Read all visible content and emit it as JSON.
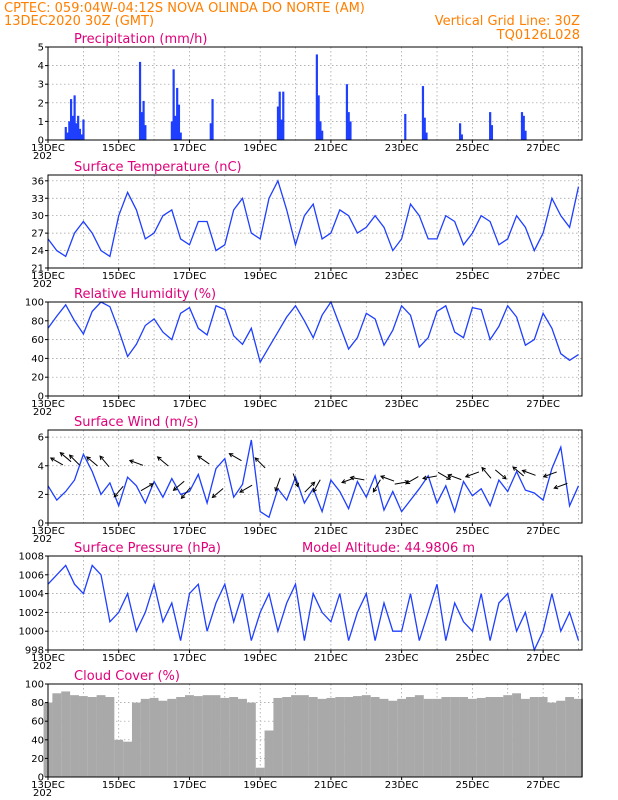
{
  "header": {
    "line1_left": "CPTEC:   059:04W-04:12S   NOVA OLINDA DO NORTE (AM)",
    "line2_left": "13DEC2020 30Z (GMT)",
    "line2_right": "Vertical Grid Line: 30Z",
    "line3_right": "TQ0126L028"
  },
  "colors": {
    "line": "#1f3fff",
    "bars": "#1f3fff",
    "cloud": "#a9a9a9",
    "header": "#ff7f00",
    "title": "#e0007a"
  },
  "x_axis": {
    "labels": [
      "13DEC",
      "15DEC",
      "17DEC",
      "19DEC",
      "21DEC",
      "23DEC",
      "25DEC",
      "27DEC"
    ],
    "label_days": [
      0,
      2,
      4,
      6,
      8,
      10,
      12,
      14
    ],
    "year_fragment": "202",
    "range_days": [
      0,
      15.1
    ]
  },
  "chart_data": [
    {
      "type": "bar",
      "title": "Precipitation (mm/h)",
      "ylim": [
        0,
        5
      ],
      "yticks": [
        0,
        1,
        2,
        3,
        4,
        5
      ],
      "x_days": [
        0.5,
        0.55,
        0.6,
        0.65,
        0.7,
        0.75,
        0.8,
        0.85,
        0.9,
        0.95,
        1.0,
        2.6,
        2.65,
        2.7,
        2.75,
        3.5,
        3.55,
        3.6,
        3.65,
        3.7,
        3.75,
        4.6,
        4.65,
        6.5,
        6.55,
        6.6,
        6.65,
        7.6,
        7.65,
        7.7,
        7.75,
        8.45,
        8.5,
        8.55,
        10.1,
        10.6,
        10.65,
        10.7,
        11.65,
        11.7,
        12.5,
        12.55,
        13.4,
        13.45,
        13.5
      ],
      "values": [
        0.7,
        0.4,
        1.0,
        2.2,
        1.3,
        2.4,
        0.9,
        1.3,
        0.6,
        0.3,
        1.1,
        4.2,
        1.5,
        2.1,
        0.8,
        1.0,
        3.8,
        1.3,
        2.8,
        1.9,
        0.4,
        0.9,
        2.2,
        1.8,
        2.6,
        1.1,
        2.6,
        4.6,
        2.4,
        1.0,
        0.5,
        3.0,
        1.5,
        1.0,
        1.4,
        2.9,
        1.2,
        0.4,
        0.9,
        0.3,
        1.5,
        0.8,
        1.5,
        1.3,
        0.5
      ]
    },
    {
      "type": "line",
      "title": "Surface Temperature (nC)",
      "ylim": [
        21,
        37
      ],
      "yticks": [
        21,
        24,
        27,
        30,
        33,
        36
      ],
      "x_days": [
        0,
        0.25,
        0.5,
        0.75,
        1,
        1.25,
        1.5,
        1.75,
        2,
        2.25,
        2.5,
        2.75,
        3,
        3.25,
        3.5,
        3.75,
        4,
        4.25,
        4.5,
        4.75,
        5,
        5.25,
        5.5,
        5.75,
        6,
        6.25,
        6.5,
        6.75,
        7,
        7.25,
        7.5,
        7.75,
        8,
        8.25,
        8.5,
        8.75,
        9,
        9.25,
        9.5,
        9.75,
        10,
        10.25,
        10.5,
        10.75,
        11,
        11.25,
        11.5,
        11.75,
        12,
        12.25,
        12.5,
        12.75,
        13,
        13.25,
        13.5,
        13.75,
        14,
        14.25,
        14.5,
        14.75,
        15
      ],
      "series": [
        {
          "values": [
            26,
            24,
            23,
            27,
            29,
            27,
            24,
            23,
            30,
            34,
            31,
            26,
            27,
            30,
            31,
            26,
            25,
            29,
            29,
            24,
            25,
            31,
            33,
            27,
            26,
            33,
            36,
            31,
            25,
            30,
            32,
            26,
            27,
            31,
            30,
            27,
            28,
            30,
            28,
            24,
            26,
            32,
            30,
            26,
            26,
            30,
            29,
            25,
            27,
            30,
            29,
            25,
            26,
            30,
            28,
            24,
            27,
            33,
            30,
            28,
            35
          ]
        }
      ]
    },
    {
      "type": "line",
      "title": "Relative Humidity (%)",
      "ylim": [
        0,
        100
      ],
      "yticks": [
        0,
        20,
        40,
        60,
        80,
        100
      ],
      "x_days": [
        0,
        0.25,
        0.5,
        0.75,
        1,
        1.25,
        1.5,
        1.75,
        2,
        2.25,
        2.5,
        2.75,
        3,
        3.25,
        3.5,
        3.75,
        4,
        4.25,
        4.5,
        4.75,
        5,
        5.25,
        5.5,
        5.75,
        6,
        6.25,
        6.5,
        6.75,
        7,
        7.25,
        7.5,
        7.75,
        8,
        8.25,
        8.5,
        8.75,
        9,
        9.25,
        9.5,
        9.75,
        10,
        10.25,
        10.5,
        10.75,
        11,
        11.25,
        11.5,
        11.75,
        12,
        12.25,
        12.5,
        12.75,
        13,
        13.25,
        13.5,
        13.75,
        14,
        14.25,
        14.5,
        14.75,
        15
      ],
      "series": [
        {
          "values": [
            72,
            85,
            97,
            80,
            66,
            90,
            100,
            95,
            70,
            42,
            55,
            75,
            82,
            68,
            60,
            88,
            94,
            72,
            65,
            96,
            92,
            64,
            55,
            72,
            36,
            52,
            68,
            84,
            96,
            80,
            62,
            86,
            100,
            75,
            50,
            62,
            88,
            82,
            54,
            70,
            96,
            86,
            52,
            62,
            90,
            96,
            68,
            62,
            94,
            92,
            60,
            74,
            96,
            84,
            54,
            60,
            88,
            72,
            45,
            38,
            44
          ]
        }
      ]
    },
    {
      "type": "line",
      "title": "Surface Wind (m/s)",
      "ylim": [
        0,
        6.5
      ],
      "yticks": [
        0,
        2,
        4,
        6
      ],
      "x_days": [
        0,
        0.25,
        0.5,
        0.75,
        1,
        1.25,
        1.5,
        1.75,
        2,
        2.25,
        2.5,
        2.75,
        3,
        3.25,
        3.5,
        3.75,
        4,
        4.25,
        4.5,
        4.75,
        5,
        5.25,
        5.5,
        5.75,
        6,
        6.25,
        6.5,
        6.75,
        7,
        7.25,
        7.5,
        7.75,
        8,
        8.25,
        8.5,
        8.75,
        9,
        9.25,
        9.5,
        9.75,
        10,
        10.25,
        10.5,
        10.75,
        11,
        11.25,
        11.5,
        11.75,
        12,
        12.25,
        12.5,
        12.75,
        13,
        13.25,
        13.5,
        13.75,
        14,
        14.25,
        14.5,
        14.75,
        15
      ],
      "series": [
        {
          "values": [
            2.6,
            1.6,
            2.2,
            3.0,
            4.8,
            3.6,
            2.0,
            2.8,
            1.2,
            3.2,
            2.6,
            1.4,
            2.9,
            1.8,
            3.1,
            2.0,
            2.2,
            3.4,
            1.4,
            3.8,
            4.5,
            1.8,
            2.7,
            5.8,
            0.8,
            0.4,
            2.4,
            1.6,
            3.2,
            1.4,
            2.4,
            0.8,
            3.0,
            2.2,
            1.0,
            2.9,
            1.8,
            3.3,
            0.9,
            2.2,
            0.8,
            1.6,
            2.4,
            3.3,
            1.4,
            2.6,
            0.8,
            2.9,
            1.9,
            2.4,
            1.2,
            3.0,
            2.2,
            3.6,
            2.3,
            2.1,
            1.6,
            3.8,
            5.3,
            1.2,
            2.6
          ]
        }
      ],
      "arrows": {
        "x_days": [
          0.25,
          0.5,
          0.75,
          1.25,
          1.6,
          2.0,
          2.5,
          2.8,
          3.25,
          3.7,
          3.9,
          4.4,
          4.8,
          5.3,
          5.6,
          6.0,
          6.5,
          7.0,
          7.4,
          7.6,
          8.5,
          8.75,
          9.3,
          9.6,
          10.0,
          10.3,
          10.8,
          11.2,
          11.5,
          12.0,
          12.4,
          12.8,
          13.3,
          13.6,
          14.2,
          14.5
        ],
        "y": [
          4.3,
          4.6,
          4.4,
          4.3,
          4.3,
          2.2,
          4.2,
          2.5,
          4.3,
          2.6,
          2.1,
          4.4,
          2.1,
          4.6,
          2.4,
          4.2,
          2.7,
          3.0,
          2.5,
          2.6,
          3.0,
          3.1,
          2.6,
          3.1,
          2.8,
          3.0,
          3.2,
          3.3,
          3.2,
          3.4,
          3.5,
          3.4,
          3.6,
          3.5,
          3.4,
          2.6
        ],
        "dir_deg": [
          150,
          140,
          135,
          140,
          130,
          230,
          160,
          30,
          140,
          220,
          230,
          145,
          220,
          150,
          210,
          135,
          250,
          290,
          45,
          240,
          200,
          170,
          240,
          160,
          10,
          210,
          190,
          330,
          160,
          200,
          130,
          320,
          140,
          160,
          200,
          200
        ]
      }
    },
    {
      "type": "line",
      "title": "Surface Pressure (hPa)",
      "annotation": "Model Altitude: 44.9806  m",
      "ylim": [
        998,
        1008
      ],
      "yticks": [
        998,
        1000,
        1002,
        1004,
        1006,
        1008
      ],
      "x_days": [
        0,
        0.25,
        0.5,
        0.75,
        1,
        1.25,
        1.5,
        1.75,
        2,
        2.25,
        2.5,
        2.75,
        3,
        3.25,
        3.5,
        3.75,
        4,
        4.25,
        4.5,
        4.75,
        5,
        5.25,
        5.5,
        5.75,
        6,
        6.25,
        6.5,
        6.75,
        7,
        7.25,
        7.5,
        7.75,
        8,
        8.25,
        8.5,
        8.75,
        9,
        9.25,
        9.5,
        9.75,
        10,
        10.25,
        10.5,
        10.75,
        11,
        11.25,
        11.5,
        11.75,
        12,
        12.25,
        12.5,
        12.75,
        13,
        13.25,
        13.5,
        13.75,
        14,
        14.25,
        14.5,
        14.75,
        15
      ],
      "series": [
        {
          "values": [
            1005,
            1006,
            1007,
            1005,
            1004,
            1007,
            1006,
            1001,
            1002,
            1004,
            1000,
            1002,
            1005,
            1001,
            1003,
            999,
            1004,
            1005,
            1000,
            1003,
            1005,
            1001,
            1004,
            999,
            1002,
            1004,
            1000,
            1003,
            1005,
            999,
            1004,
            1002,
            1001,
            1004,
            999,
            1002,
            1004,
            999,
            1003,
            1000,
            1000,
            1004,
            999,
            1002,
            1005,
            999,
            1003,
            1001,
            1000,
            1004,
            999,
            1003,
            1004,
            1000,
            1002,
            998,
            1000,
            1004,
            1000,
            1002,
            999
          ]
        }
      ]
    },
    {
      "type": "area",
      "title": "Cloud Cover (%)",
      "ylim": [
        0,
        100
      ],
      "yticks": [
        0,
        20,
        40,
        60,
        80,
        100
      ],
      "x_days": [
        0,
        0.25,
        0.5,
        0.75,
        1,
        1.25,
        1.5,
        1.75,
        2,
        2.25,
        2.5,
        2.75,
        3,
        3.25,
        3.5,
        3.75,
        4,
        4.25,
        4.5,
        4.75,
        5,
        5.25,
        5.5,
        5.75,
        6,
        6.25,
        6.5,
        6.75,
        7,
        7.25,
        7.5,
        7.75,
        8,
        8.25,
        8.5,
        8.75,
        9,
        9.25,
        9.5,
        9.75,
        10,
        10.25,
        10.5,
        10.75,
        11,
        11.25,
        11.5,
        11.75,
        12,
        12.25,
        12.5,
        12.75,
        13,
        13.25,
        13.5,
        13.75,
        14,
        14.25,
        14.5,
        14.75,
        15
      ],
      "series": [
        {
          "values": [
            80,
            90,
            92,
            88,
            87,
            86,
            88,
            86,
            40,
            38,
            80,
            84,
            85,
            82,
            84,
            86,
            88,
            87,
            88,
            88,
            85,
            86,
            84,
            80,
            10,
            50,
            85,
            86,
            88,
            88,
            86,
            84,
            85,
            86,
            86,
            87,
            88,
            86,
            84,
            82,
            84,
            86,
            88,
            84,
            84,
            86,
            86,
            86,
            84,
            85,
            86,
            86,
            88,
            90,
            84,
            86,
            86,
            80,
            82,
            86,
            84
          ]
        }
      ]
    }
  ]
}
